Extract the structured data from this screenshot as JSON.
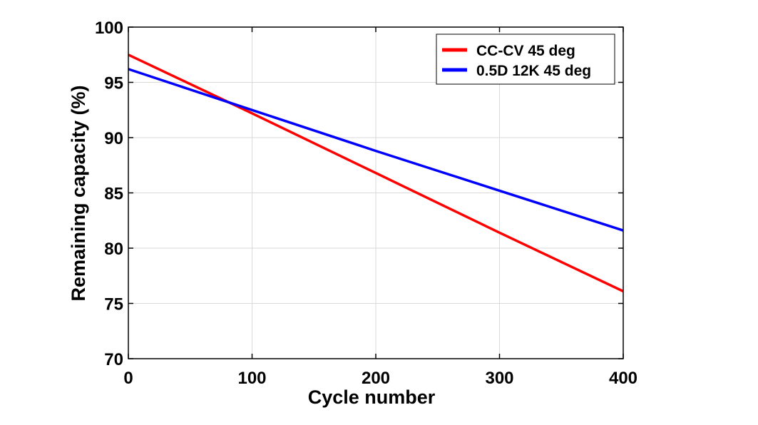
{
  "chart_data": {
    "type": "line",
    "title": "",
    "xlabel": "Cycle number",
    "ylabel": "Remaining capacity (%)",
    "xlim": [
      0,
      400
    ],
    "ylim": [
      70,
      100
    ],
    "xticks": [
      0,
      100,
      200,
      300,
      400
    ],
    "yticks": [
      70,
      75,
      80,
      85,
      90,
      95,
      100
    ],
    "grid": true,
    "legend_position": "top-right",
    "series": [
      {
        "name": "CC-CV 45 deg",
        "color": "#ff0000",
        "x": [
          0,
          100,
          200,
          300,
          400
        ],
        "y": [
          97.5,
          92.2,
          86.8,
          81.4,
          76.1
        ]
      },
      {
        "name": "0.5D 12K 45 deg",
        "color": "#0000ff",
        "x": [
          0,
          100,
          200,
          300,
          400
        ],
        "y": [
          96.2,
          92.5,
          88.8,
          85.2,
          81.6
        ]
      }
    ]
  }
}
